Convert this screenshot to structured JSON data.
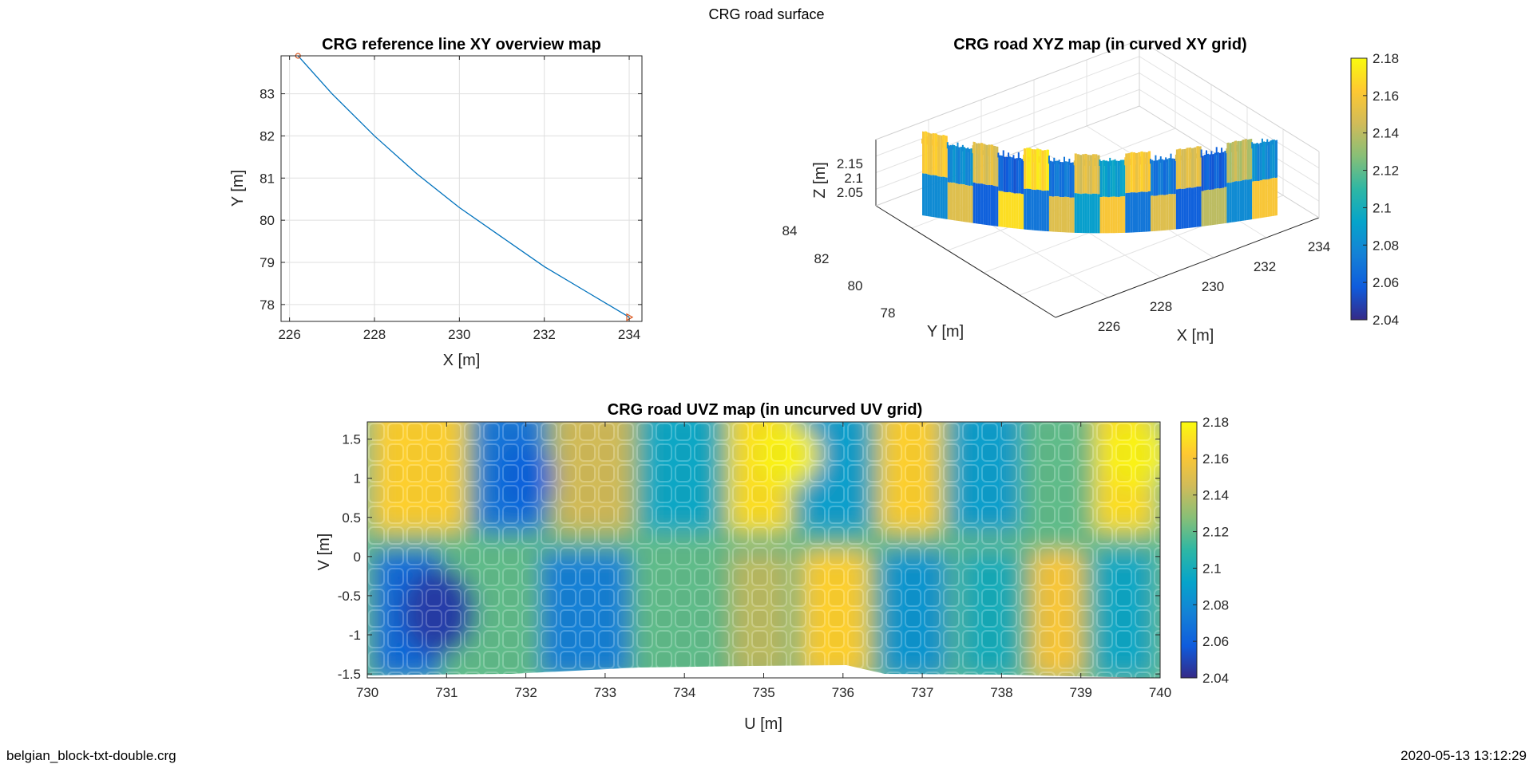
{
  "figure": {
    "title": "CRG road surface",
    "footer_left": "belgian_block-txt-double.crg",
    "footer_right": "2020-05-13 13:12:29"
  },
  "colormap": {
    "name": "parula",
    "stops": [
      "#352a87",
      "#0f5cdd",
      "#1481d6",
      "#06a4ca",
      "#2eb7a4",
      "#87bf77",
      "#d1bb59",
      "#fec832",
      "#f9fb0e"
    ]
  },
  "chart_data": [
    {
      "id": "xy",
      "type": "line",
      "title": "CRG reference line XY overview map",
      "xlabel": "X [m]",
      "ylabel": "Y [m]",
      "xlim": [
        225.8,
        234.3
      ],
      "ylim": [
        77.6,
        83.9
      ],
      "xticks": [
        226,
        228,
        230,
        232,
        234
      ],
      "yticks": [
        78,
        79,
        80,
        81,
        82,
        83
      ],
      "grid": true,
      "line_color": "#0072bd",
      "series": [
        {
          "x": [
            226.2,
            227.0,
            228.0,
            229.0,
            230.0,
            231.0,
            232.0,
            233.0,
            234.0
          ],
          "y": [
            83.9,
            83.0,
            82.0,
            81.1,
            80.3,
            79.6,
            78.9,
            78.3,
            77.7
          ]
        }
      ],
      "markers": [
        {
          "name": "start",
          "x": 226.2,
          "y": 83.9,
          "symbol": "circle",
          "color": "#d95319"
        },
        {
          "name": "end",
          "x": 234.0,
          "y": 77.7,
          "symbol": "triangle-right",
          "color": "#d95319"
        }
      ]
    },
    {
      "id": "xyz",
      "type": "surface",
      "title": "CRG road XYZ map (in curved XY grid)",
      "xlabel": "X [m]",
      "ylabel": "Y [m]",
      "zlabel": "Z [m]",
      "xticks": [
        226,
        228,
        230,
        232,
        234
      ],
      "yticks": [
        78,
        80,
        82,
        84
      ],
      "zticks": [
        2.05,
        2.1,
        2.15
      ],
      "zlim": [
        2.04,
        2.18
      ],
      "colorbar_ticks": [
        2.04,
        2.06,
        2.08,
        2.1,
        2.12,
        2.14,
        2.16,
        2.18
      ],
      "block_pattern": [
        2.16,
        2.08,
        2.15,
        2.06,
        2.17,
        2.07,
        2.15,
        2.09,
        2.16,
        2.07,
        2.15,
        2.06,
        2.14,
        2.08
      ]
    },
    {
      "id": "uvz",
      "type": "heatmap",
      "title": "CRG road UVZ map (in uncurved UV grid)",
      "xlabel": "U [m]",
      "ylabel": "V [m]",
      "xlim": [
        730,
        740
      ],
      "ylim": [
        -1.55,
        1.72
      ],
      "xticks": [
        730,
        731,
        732,
        733,
        734,
        735,
        736,
        737,
        738,
        739,
        740
      ],
      "yticks": [
        -1.5,
        -1,
        -0.5,
        0,
        0.5,
        1,
        1.5
      ],
      "zlim": [
        2.04,
        2.18
      ],
      "colorbar_ticks": [
        2.04,
        2.06,
        2.08,
        2.1,
        2.12,
        2.14,
        2.16,
        2.18
      ],
      "upper_band": [
        {
          "u": [
            730.0,
            731.3
          ],
          "z": 2.165
        },
        {
          "u": [
            731.3,
            732.3
          ],
          "z": 2.07
        },
        {
          "u": [
            732.3,
            733.4
          ],
          "z": 2.145
        },
        {
          "u": [
            733.4,
            734.5
          ],
          "z": 2.095
        },
        {
          "u": [
            734.5,
            735.4
          ],
          "z": 2.17
        },
        {
          "u": [
            735.4,
            736.4
          ],
          "z": 2.09
        },
        {
          "u": [
            736.4,
            737.3
          ],
          "z": 2.165
        },
        {
          "u": [
            737.3,
            738.3
          ],
          "z": 2.09
        },
        {
          "u": [
            738.3,
            739.1
          ],
          "z": 2.12
        },
        {
          "u": [
            739.1,
            740.0
          ],
          "z": 2.17
        }
      ],
      "lower_band": [
        {
          "u": [
            730.0,
            731.0
          ],
          "z": 2.065
        },
        {
          "u": [
            731.0,
            732.1
          ],
          "z": 2.12
        },
        {
          "u": [
            732.1,
            733.4
          ],
          "z": 2.075
        },
        {
          "u": [
            733.4,
            734.5
          ],
          "z": 2.12
        },
        {
          "u": [
            734.5,
            735.4
          ],
          "z": 2.14
        },
        {
          "u": [
            735.4,
            736.4
          ],
          "z": 2.165
        },
        {
          "u": [
            736.4,
            737.4
          ],
          "z": 2.085
        },
        {
          "u": [
            737.4,
            738.3
          ],
          "z": 2.1
        },
        {
          "u": [
            738.3,
            739.1
          ],
          "z": 2.16
        },
        {
          "u": [
            739.1,
            740.0
          ],
          "z": 2.095
        }
      ]
    }
  ]
}
